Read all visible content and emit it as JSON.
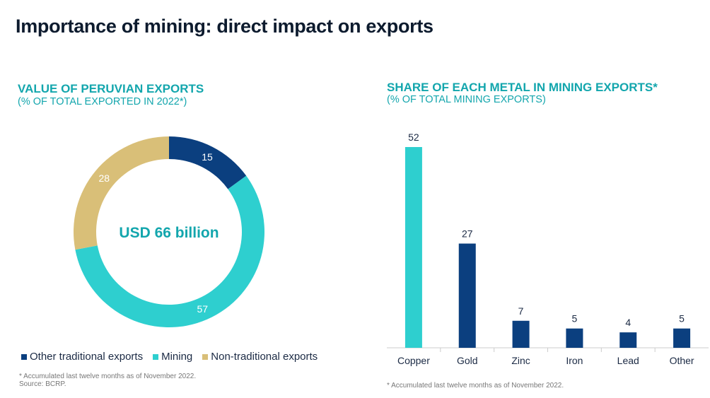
{
  "title": "Importance of mining: direct impact on exports",
  "chart_data": [
    {
      "type": "pie",
      "title": "VALUE  OF PERUVIAN  EXPORTS",
      "subtitle": "(% OF TOTAL EXPORTED IN 2022*)",
      "center_label": "USD 66 billion",
      "slices": [
        {
          "name": "Other traditional exports",
          "value": 15,
          "color": "#0b3f7f"
        },
        {
          "name": "Mining",
          "value": 57,
          "color": "#2ecfcf"
        },
        {
          "name": "Non-traditional exports",
          "value": 28,
          "color": "#d9bf78"
        }
      ],
      "legend": "bottom",
      "footnote": "* Accumulated last twelve months as of November 2022.",
      "source": "Source: BCRP."
    },
    {
      "type": "bar",
      "title": "SHARE OF EACH METAL IN MINING EXPORTS*",
      "subtitle": "(% OF TOTAL MINING EXPORTS)",
      "categories": [
        "Copper",
        "Gold",
        "Zinc",
        "Iron",
        "Lead",
        "Other"
      ],
      "values": [
        52,
        27,
        7,
        5,
        4,
        5
      ],
      "colors": [
        "#2ecfcf",
        "#0b3f7f",
        "#0b3f7f",
        "#0b3f7f",
        "#0b3f7f",
        "#0b3f7f"
      ],
      "ylim": [
        0,
        52
      ],
      "grid": false,
      "footnote": "* Accumulated last twelve months as of November 2022."
    }
  ]
}
